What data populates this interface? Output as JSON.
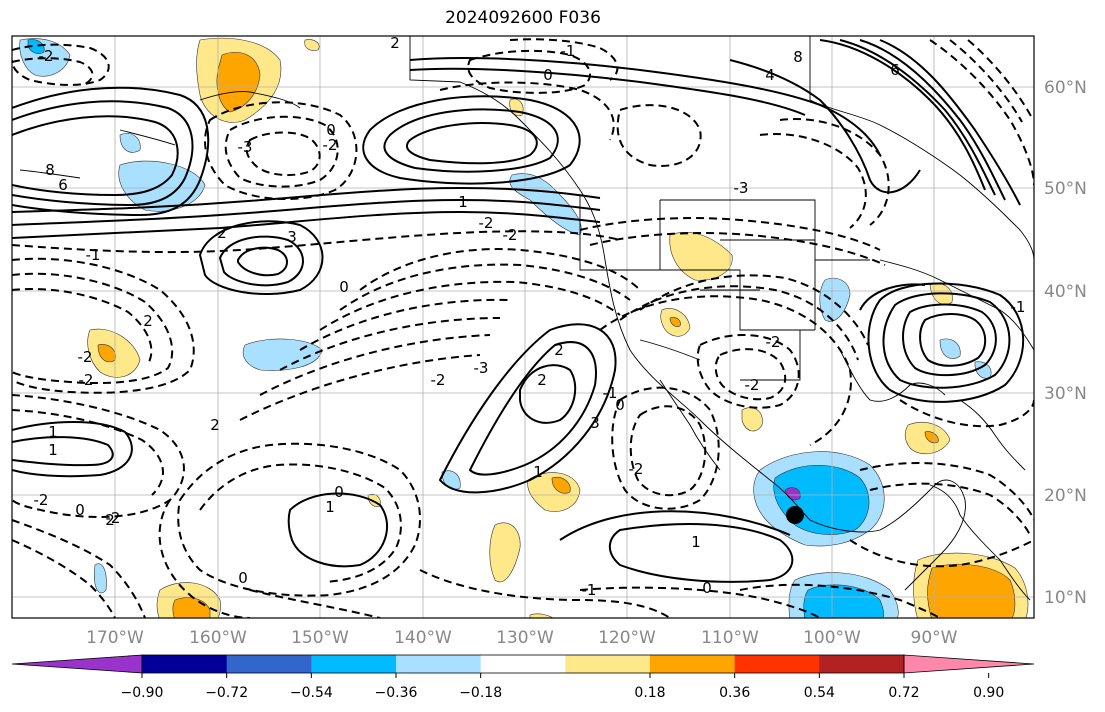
{
  "title": "2024092600 F036",
  "map": {
    "lon_labels": [
      "170°W",
      "160°W",
      "150°W",
      "140°W",
      "130°W",
      "120°W",
      "110°W",
      "100°W",
      "90°W"
    ],
    "lat_labels": [
      "60°N",
      "50°N",
      "40°N",
      "30°N",
      "20°N",
      "10°N"
    ],
    "contour_labels": [
      {
        "t": "2"
      },
      {
        "t": "-1"
      },
      {
        "t": "0"
      },
      {
        "t": "-2"
      },
      {
        "t": "8"
      },
      {
        "t": "4"
      },
      {
        "t": "6"
      },
      {
        "t": "8"
      },
      {
        "t": "6"
      },
      {
        "t": "-3"
      },
      {
        "t": "0"
      },
      {
        "t": "-2"
      },
      {
        "t": "1"
      },
      {
        "t": "-2"
      },
      {
        "t": "-3"
      },
      {
        "t": "2"
      },
      {
        "t": "3"
      },
      {
        "t": "-1"
      },
      {
        "t": "0"
      },
      {
        "t": "-2"
      },
      {
        "t": "2"
      },
      {
        "t": "-2"
      },
      {
        "t": "-2"
      },
      {
        "t": "-2"
      },
      {
        "t": "-3"
      },
      {
        "t": "-2"
      },
      {
        "t": "-2"
      },
      {
        "t": "2"
      },
      {
        "t": "-1"
      },
      {
        "t": "2"
      },
      {
        "t": "3"
      },
      {
        "t": "0"
      },
      {
        "t": "1"
      },
      {
        "t": "1"
      },
      {
        "t": "2"
      },
      {
        "t": "-2"
      },
      {
        "t": "1"
      },
      {
        "t": "2"
      },
      {
        "t": "0"
      },
      {
        "t": "0"
      },
      {
        "t": "-2"
      },
      {
        "t": "1"
      },
      {
        "t": "-2"
      },
      {
        "t": "0"
      },
      {
        "t": "1"
      },
      {
        "t": "0"
      },
      {
        "t": "-1"
      },
      {
        "t": "-1"
      }
    ]
  },
  "colorbar": {
    "colors": [
      "#9933cc",
      "#000099",
      "#3366cc",
      "#00bbff",
      "#aae0ff",
      "#ffffff",
      "#ffe88a",
      "#ffa500",
      "#ff3300",
      "#b22222",
      "#ff88aa"
    ],
    "ticks": [
      "−0.90",
      "−0.72",
      "−0.54",
      "−0.36",
      "−0.18",
      "0.18",
      "0.36",
      "0.54",
      "0.72",
      "0.90"
    ]
  }
}
